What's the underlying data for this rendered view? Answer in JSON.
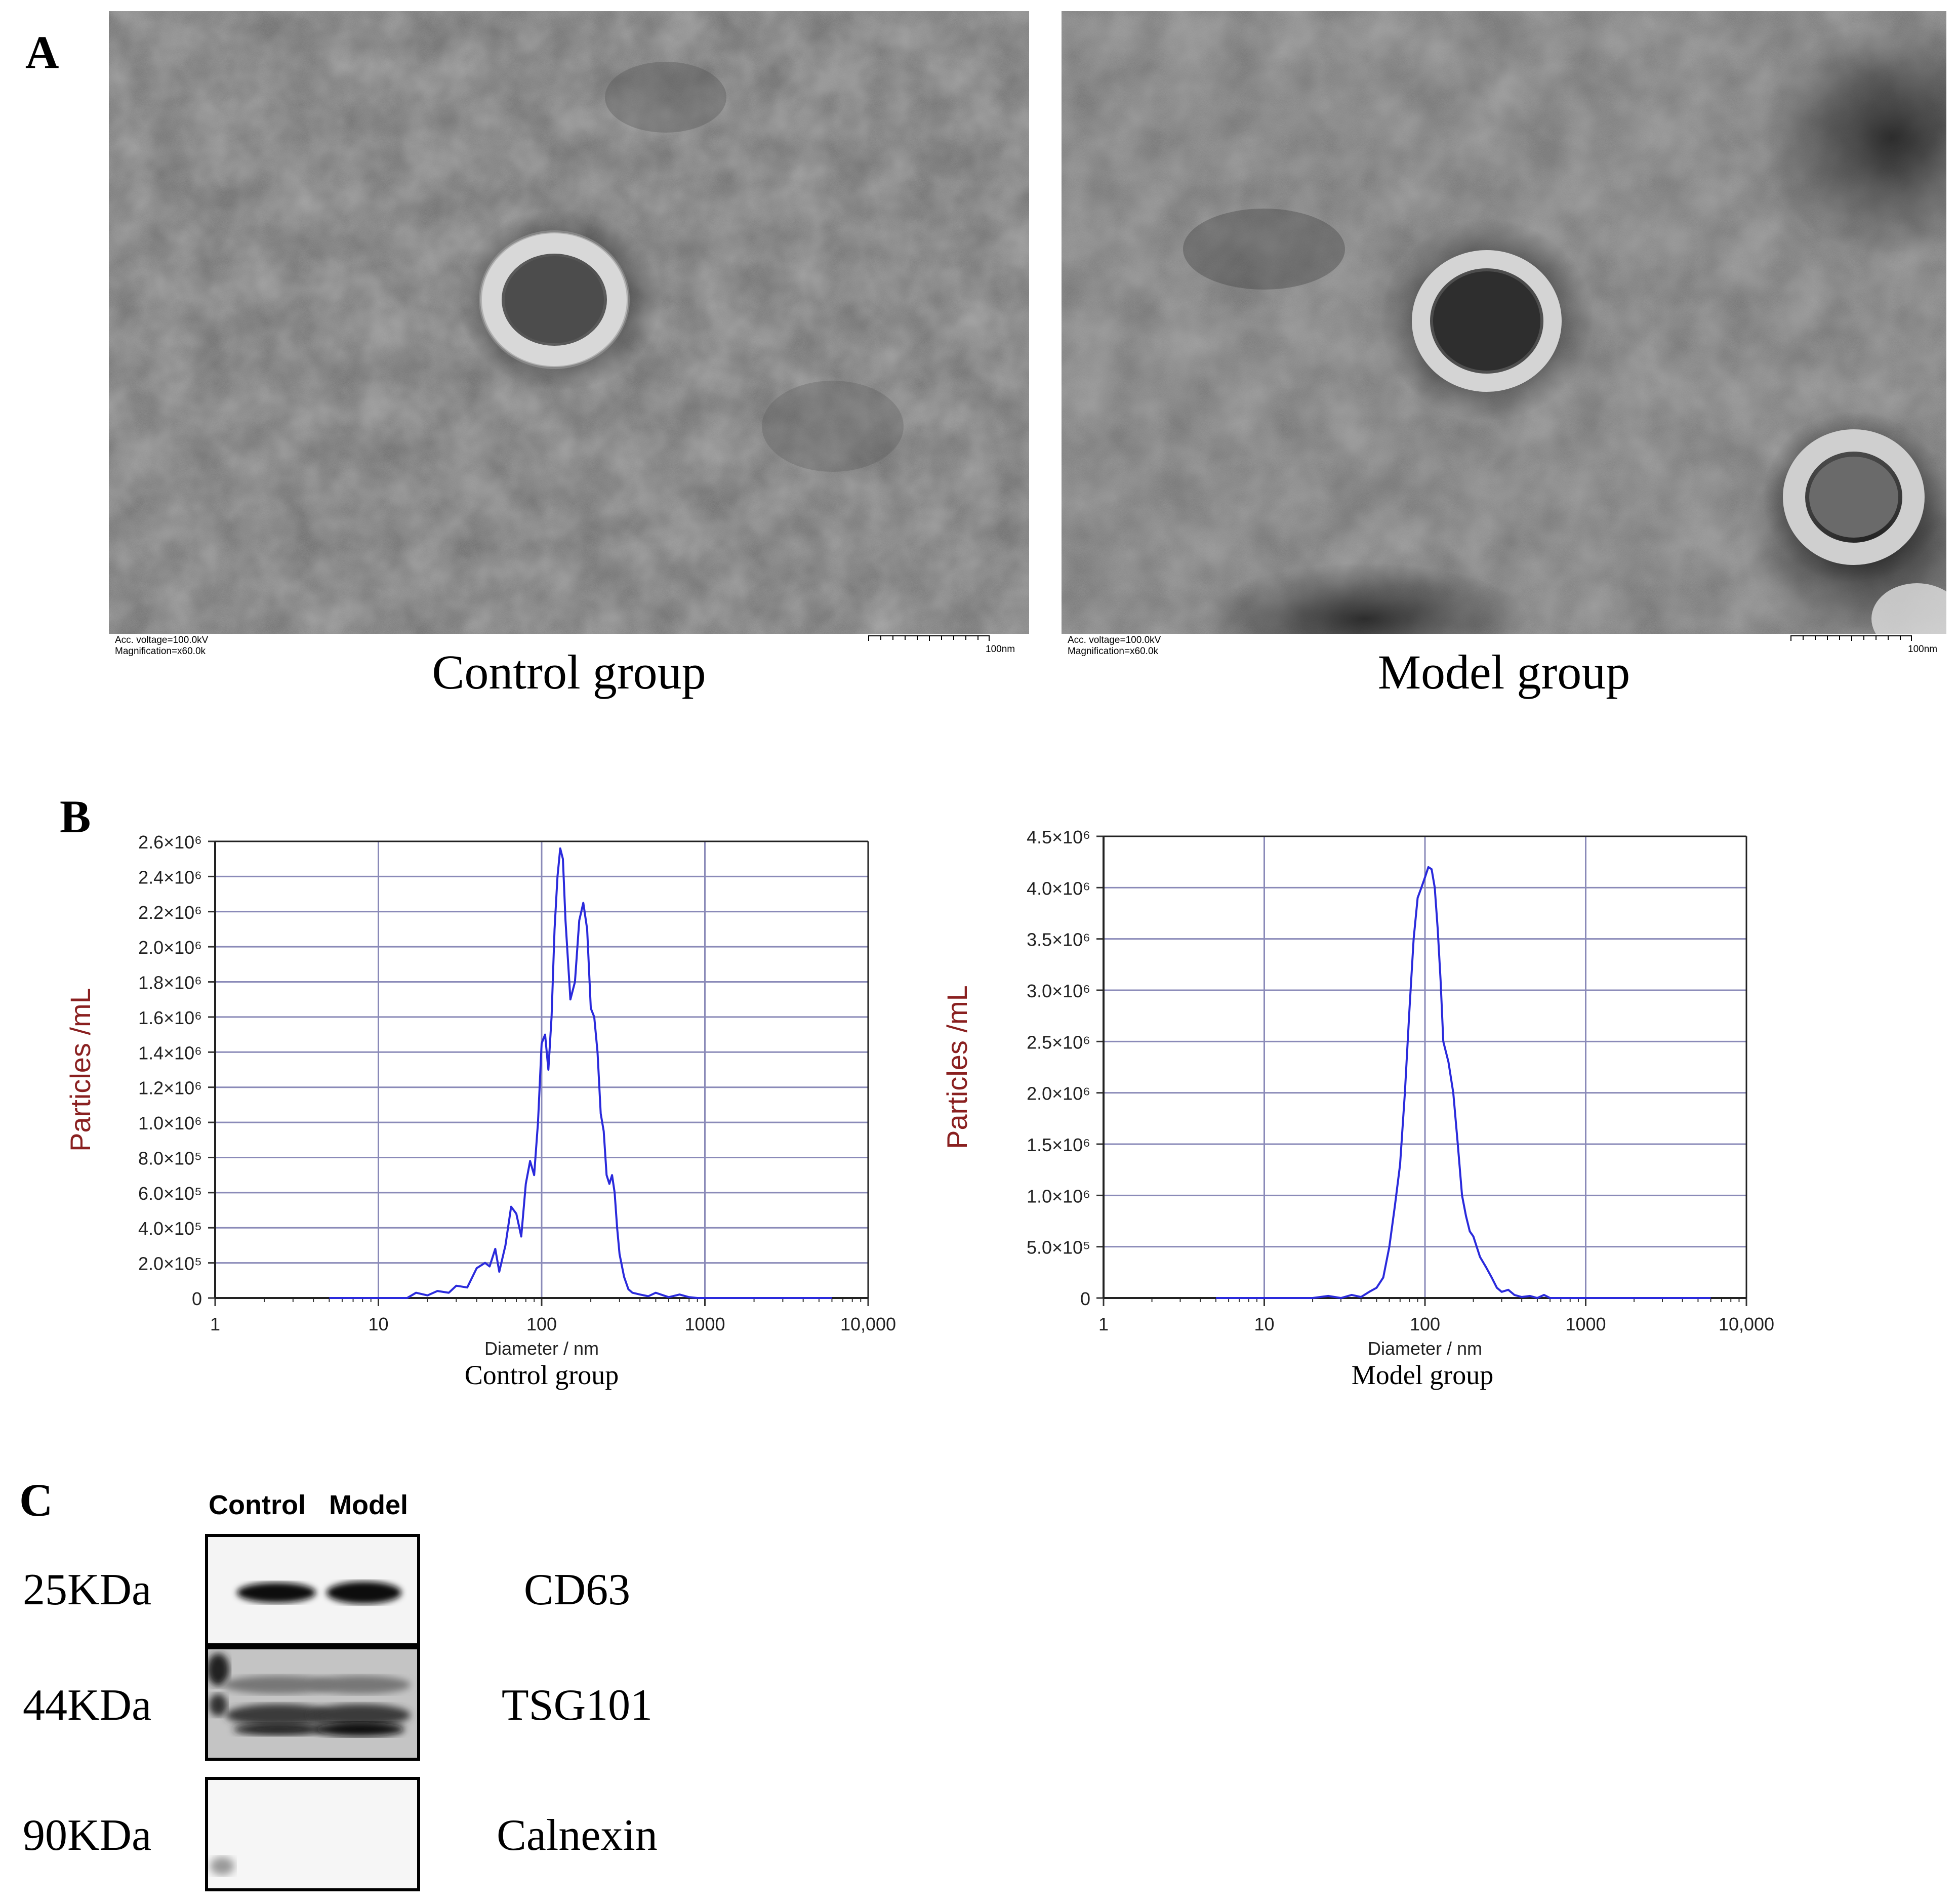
{
  "panels": {
    "A": {
      "letter": "A",
      "images": [
        {
          "caption": "Control group",
          "meta_voltage": "Acc. voltage=100.0kV",
          "meta_mag": "Magnification=x60.0k",
          "scale": "100nm"
        },
        {
          "caption": "Model group",
          "meta_voltage": "Acc. voltage=100.0kV",
          "meta_mag": "Magnification=x60.0k",
          "scale": "100nm"
        }
      ]
    },
    "B": {
      "letter": "B"
    },
    "C": {
      "letter": "C",
      "lanes": [
        "Control",
        "Model"
      ],
      "rows": [
        {
          "mw": "25KDa",
          "protein": "CD63"
        },
        {
          "mw": "44KDa",
          "protein": "TSG101"
        },
        {
          "mw": "90KDa",
          "protein": "Calnexin"
        }
      ]
    }
  },
  "chart_data": [
    {
      "type": "line",
      "caption": "Control group",
      "xlabel": "Diameter / nm",
      "ylabel": "Particles /mL",
      "x_scale": "log",
      "xlim": [
        1,
        10000
      ],
      "ylim": [
        0,
        2600000
      ],
      "xtick_labels": [
        "1",
        "10",
        "100",
        "1000",
        "10,000"
      ],
      "ytick_labels": [
        "0",
        "2.0×10⁵",
        "4.0×10⁵",
        "6.0×10⁵",
        "8.0×10⁵",
        "1.0×10⁶",
        "1.2×10⁶",
        "1.4×10⁶",
        "1.6×10⁶",
        "1.8×10⁶",
        "2.0×10⁶",
        "2.2×10⁶",
        "2.4×10⁶",
        "2.6×10⁶"
      ],
      "grid": true,
      "line_color": "#2a2adc",
      "series": [
        {
          "x": [
            5,
            15,
            17,
            20,
            23,
            27,
            30,
            35,
            40,
            45,
            48,
            52,
            55,
            60,
            65,
            70,
            75,
            80,
            85,
            90,
            95,
            100,
            105,
            110,
            115,
            120,
            125,
            130,
            135,
            140,
            150,
            160,
            170,
            180,
            190,
            200,
            210,
            220,
            230,
            240,
            250,
            260,
            270,
            280,
            290,
            300,
            320,
            340,
            360,
            400,
            450,
            500,
            600,
            700,
            800,
            900,
            1000,
            6000
          ],
          "y": [
            0,
            0,
            30000,
            15000,
            40000,
            30000,
            70000,
            60000,
            170000,
            200000,
            180000,
            280000,
            150000,
            300000,
            520000,
            480000,
            350000,
            650000,
            780000,
            700000,
            1000000,
            1450000,
            1500000,
            1300000,
            1600000,
            2100000,
            2400000,
            2560000,
            2500000,
            2150000,
            1700000,
            1800000,
            2150000,
            2250000,
            2100000,
            1650000,
            1600000,
            1400000,
            1050000,
            950000,
            700000,
            650000,
            700000,
            600000,
            400000,
            250000,
            120000,
            50000,
            30000,
            20000,
            10000,
            30000,
            5000,
            20000,
            5000,
            0,
            0,
            0
          ]
        }
      ]
    },
    {
      "type": "line",
      "caption": "Model group",
      "xlabel": "Diameter / nm",
      "ylabel": "Particles /mL",
      "x_scale": "log",
      "xlim": [
        1,
        10000
      ],
      "ylim": [
        0,
        4500000
      ],
      "xtick_labels": [
        "1",
        "10",
        "100",
        "1000",
        "10,000"
      ],
      "ytick_labels": [
        "0",
        "5.0×10⁵",
        "1.0×10⁶",
        "1.5×10⁶",
        "2.0×10⁶",
        "2.5×10⁶",
        "3.0×10⁶",
        "3.5×10⁶",
        "4.0×10⁶",
        "4.5×10⁶"
      ],
      "grid": true,
      "line_color": "#2a2adc",
      "series": [
        {
          "x": [
            5,
            20,
            25,
            30,
            35,
            40,
            45,
            50,
            55,
            60,
            65,
            70,
            75,
            80,
            85,
            90,
            95,
            100,
            105,
            110,
            115,
            120,
            125,
            130,
            140,
            150,
            160,
            170,
            180,
            190,
            200,
            220,
            240,
            260,
            280,
            300,
            330,
            360,
            400,
            450,
            500,
            550,
            600,
            700,
            1000,
            6000
          ],
          "y": [
            0,
            0,
            20000,
            0,
            30000,
            10000,
            60000,
            100000,
            200000,
            500000,
            900000,
            1300000,
            2000000,
            2800000,
            3500000,
            3900000,
            4000000,
            4100000,
            4200000,
            4180000,
            4000000,
            3600000,
            3100000,
            2500000,
            2300000,
            2000000,
            1500000,
            1000000,
            800000,
            650000,
            600000,
            400000,
            300000,
            200000,
            100000,
            60000,
            80000,
            30000,
            10000,
            20000,
            0,
            30000,
            0,
            0,
            0,
            0
          ]
        }
      ]
    }
  ]
}
